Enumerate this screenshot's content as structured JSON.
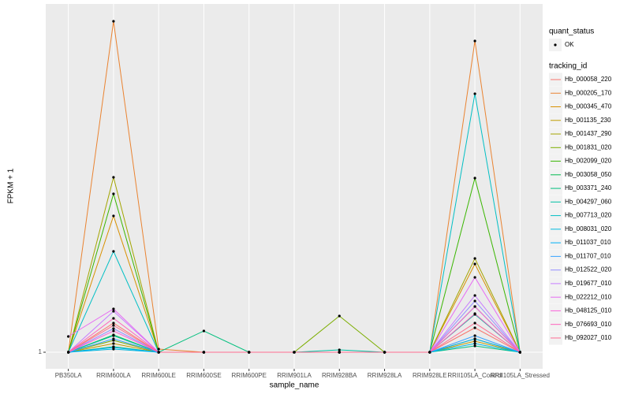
{
  "chart_data": {
    "type": "line",
    "x_label": "sample_name",
    "y_label": "FPKM + 1",
    "categories": [
      "PB350LA",
      "RRIM600LA",
      "RRIM600LE",
      "RRIM600SE",
      "RRIM600PE",
      "RRIM901LA",
      "RRIM928BA",
      "RRIM928LA",
      "RRIM928LE",
      "RRII105LA_Control",
      "RRII105LA_Stressed"
    ],
    "ylim": [
      -4.25,
      111.5
    ],
    "yticks": [
      1
    ],
    "grid": true,
    "point_color": "#000000",
    "point_legend": {
      "title": "quant_status",
      "labels": [
        "OK"
      ]
    },
    "legend_title": "tracking_id",
    "series": [
      {
        "name": "Hb_000058_220",
        "color": "#F8766D",
        "values": [
          1,
          10.25,
          1,
          1,
          1,
          1,
          1,
          1,
          1,
          8.75,
          1
        ]
      },
      {
        "name": "Hb_000205_170",
        "color": "#EA8331",
        "values": [
          1,
          106,
          2,
          1,
          1,
          1,
          1,
          1,
          1,
          99.75,
          1
        ]
      },
      {
        "name": "Hb_000345_470",
        "color": "#D89000",
        "values": [
          1,
          44.25,
          1,
          1,
          1,
          1,
          1,
          1,
          1,
          29,
          1
        ]
      },
      {
        "name": "Hb_001135_230",
        "color": "#C09B00",
        "values": [
          1,
          3.75,
          1,
          1,
          1,
          1,
          1,
          1,
          1,
          4.5,
          1
        ]
      },
      {
        "name": "Hb_001437_290",
        "color": "#A3A500",
        "values": [
          1,
          56.5,
          1,
          1,
          1,
          1,
          1,
          1,
          1,
          30.75,
          1
        ]
      },
      {
        "name": "Hb_001831_020",
        "color": "#7CAE00",
        "values": [
          1,
          4.75,
          1,
          1,
          1,
          1,
          12.5,
          1,
          1,
          5.25,
          1
        ]
      },
      {
        "name": "Hb_002099_020",
        "color": "#39B600",
        "values": [
          1,
          51.25,
          1,
          1,
          1,
          1,
          1,
          1,
          1,
          56.25,
          1
        ]
      },
      {
        "name": "Hb_003058_050",
        "color": "#00BB4E",
        "values": [
          1,
          6.5,
          1,
          1,
          1,
          1,
          1,
          1,
          1,
          15.5,
          1
        ]
      },
      {
        "name": "Hb_003371_240",
        "color": "#00BF7D",
        "values": [
          1,
          2.75,
          1,
          7.75,
          1,
          1,
          1,
          1,
          1,
          3,
          1
        ]
      },
      {
        "name": "Hb_004297_060",
        "color": "#00C1A3",
        "values": [
          1,
          6.25,
          1,
          1,
          1,
          1,
          1.75,
          1,
          1,
          13,
          1
        ]
      },
      {
        "name": "Hb_007713_020",
        "color": "#00BFC4",
        "values": [
          1,
          33,
          1,
          1,
          1,
          1,
          1,
          1,
          1,
          83,
          1
        ]
      },
      {
        "name": "Hb_008031_020",
        "color": "#00BAE0",
        "values": [
          1,
          2,
          1,
          1,
          1,
          1,
          1,
          1,
          1,
          3.75,
          1
        ]
      },
      {
        "name": "Hb_011037_010",
        "color": "#00B0F6",
        "values": [
          1,
          2.5,
          1,
          1,
          1,
          1,
          1,
          1,
          1,
          5.25,
          1
        ]
      },
      {
        "name": "Hb_011707_010",
        "color": "#35A2FF",
        "values": [
          1,
          5.25,
          1,
          1,
          1,
          1,
          1,
          1,
          1,
          6.25,
          1
        ]
      },
      {
        "name": "Hb_012522_020",
        "color": "#9590FF",
        "values": [
          1,
          8.5,
          1,
          1,
          1,
          1,
          1,
          1,
          1,
          17.25,
          1
        ]
      },
      {
        "name": "Hb_019677_010",
        "color": "#C77CFF",
        "values": [
          1,
          14,
          1,
          1,
          1,
          1,
          1,
          1,
          1,
          19,
          1
        ]
      },
      {
        "name": "Hb_022212_010",
        "color": "#E76BF3",
        "values": [
          6,
          14.75,
          1,
          1,
          1,
          1,
          1,
          1,
          1,
          24.75,
          1
        ]
      },
      {
        "name": "Hb_048125_010",
        "color": "#FA62DB",
        "values": [
          1,
          7.75,
          1,
          1,
          1,
          1,
          1,
          1,
          1,
          15.5,
          1
        ]
      },
      {
        "name": "Hb_076693_010",
        "color": "#FF62BC",
        "values": [
          1,
          11.75,
          1,
          1,
          1,
          1,
          1,
          1,
          1,
          13.25,
          1
        ]
      },
      {
        "name": "Hb_092027_010",
        "color": "#FF6C91",
        "values": [
          1,
          9.5,
          1,
          1,
          1,
          1,
          1,
          1,
          1,
          10.25,
          1
        ]
      }
    ]
  }
}
